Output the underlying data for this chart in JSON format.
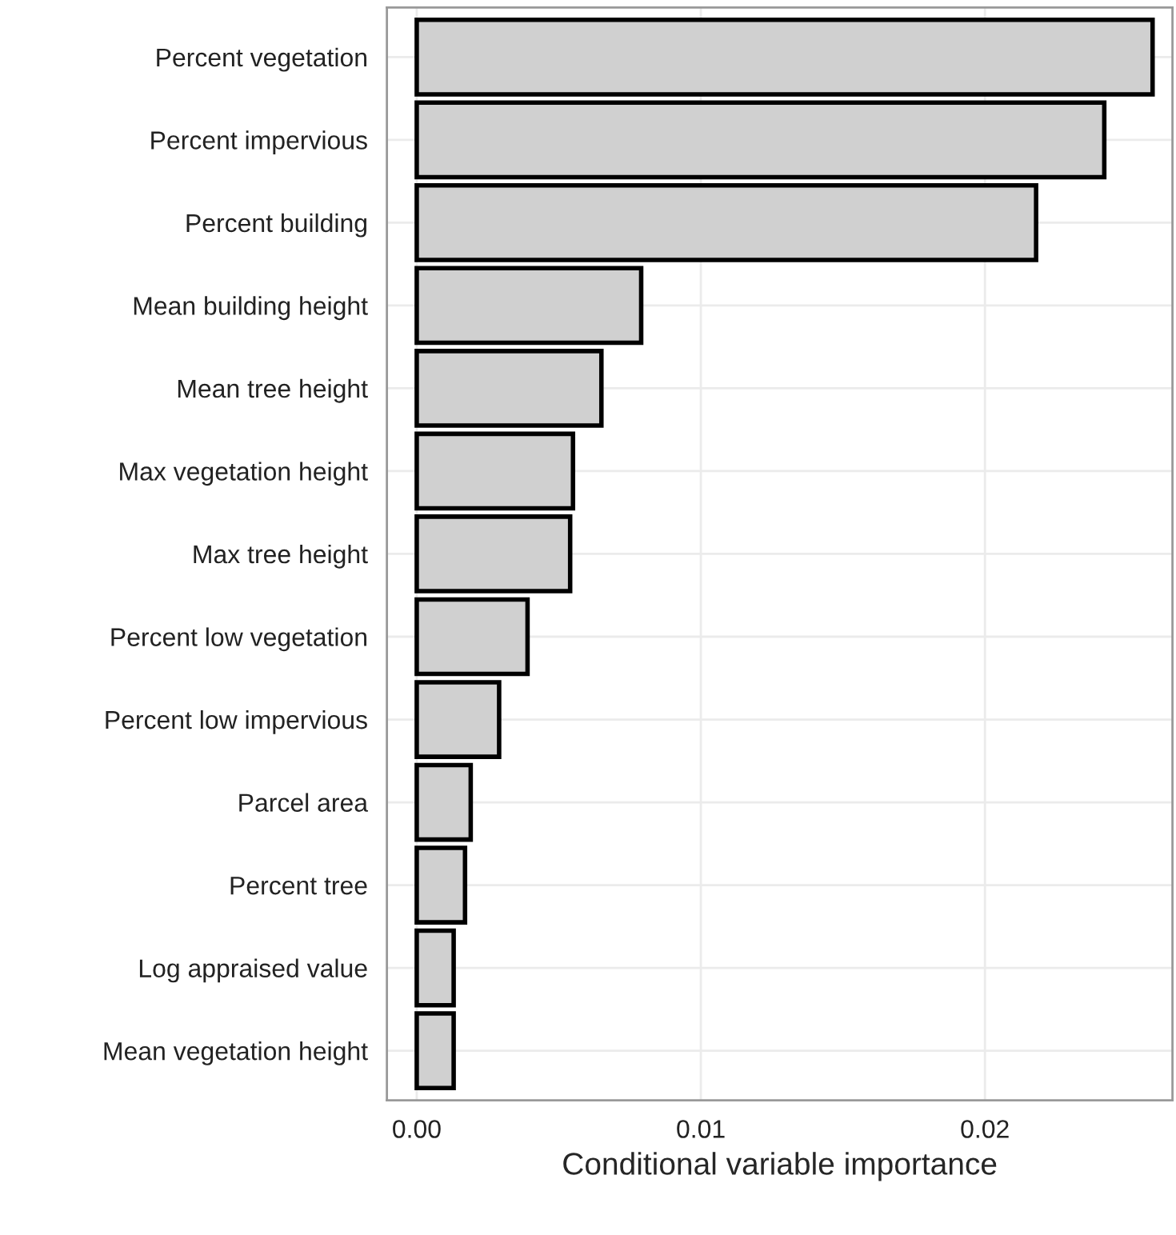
{
  "chart_data": {
    "type": "bar",
    "orientation": "horizontal",
    "categories": [
      "Percent vegetation",
      "Percent impervious",
      "Percent building",
      "Mean building height",
      "Mean tree height",
      "Max vegetation height",
      "Max tree height",
      "Percent low vegetation",
      "Percent low impervious",
      "Parcel area",
      "Percent tree",
      "Log appraised value",
      "Mean vegetation height"
    ],
    "values": [
      0.0259,
      0.0242,
      0.0218,
      0.0079,
      0.0065,
      0.0055,
      0.0054,
      0.0039,
      0.0029,
      0.0019,
      0.0017,
      0.0013,
      0.0013
    ],
    "color": "#d0d0d0",
    "xlabel": "Conditional variable importance",
    "xlim": [
      -0.00105,
      0.0266
    ],
    "xticks": [
      {
        "value": 0,
        "label": "0.00"
      },
      {
        "value": 0.01,
        "label": "0.01"
      },
      {
        "value": 0.02,
        "label": "0.02"
      }
    ],
    "grid": true,
    "legend": false
  }
}
